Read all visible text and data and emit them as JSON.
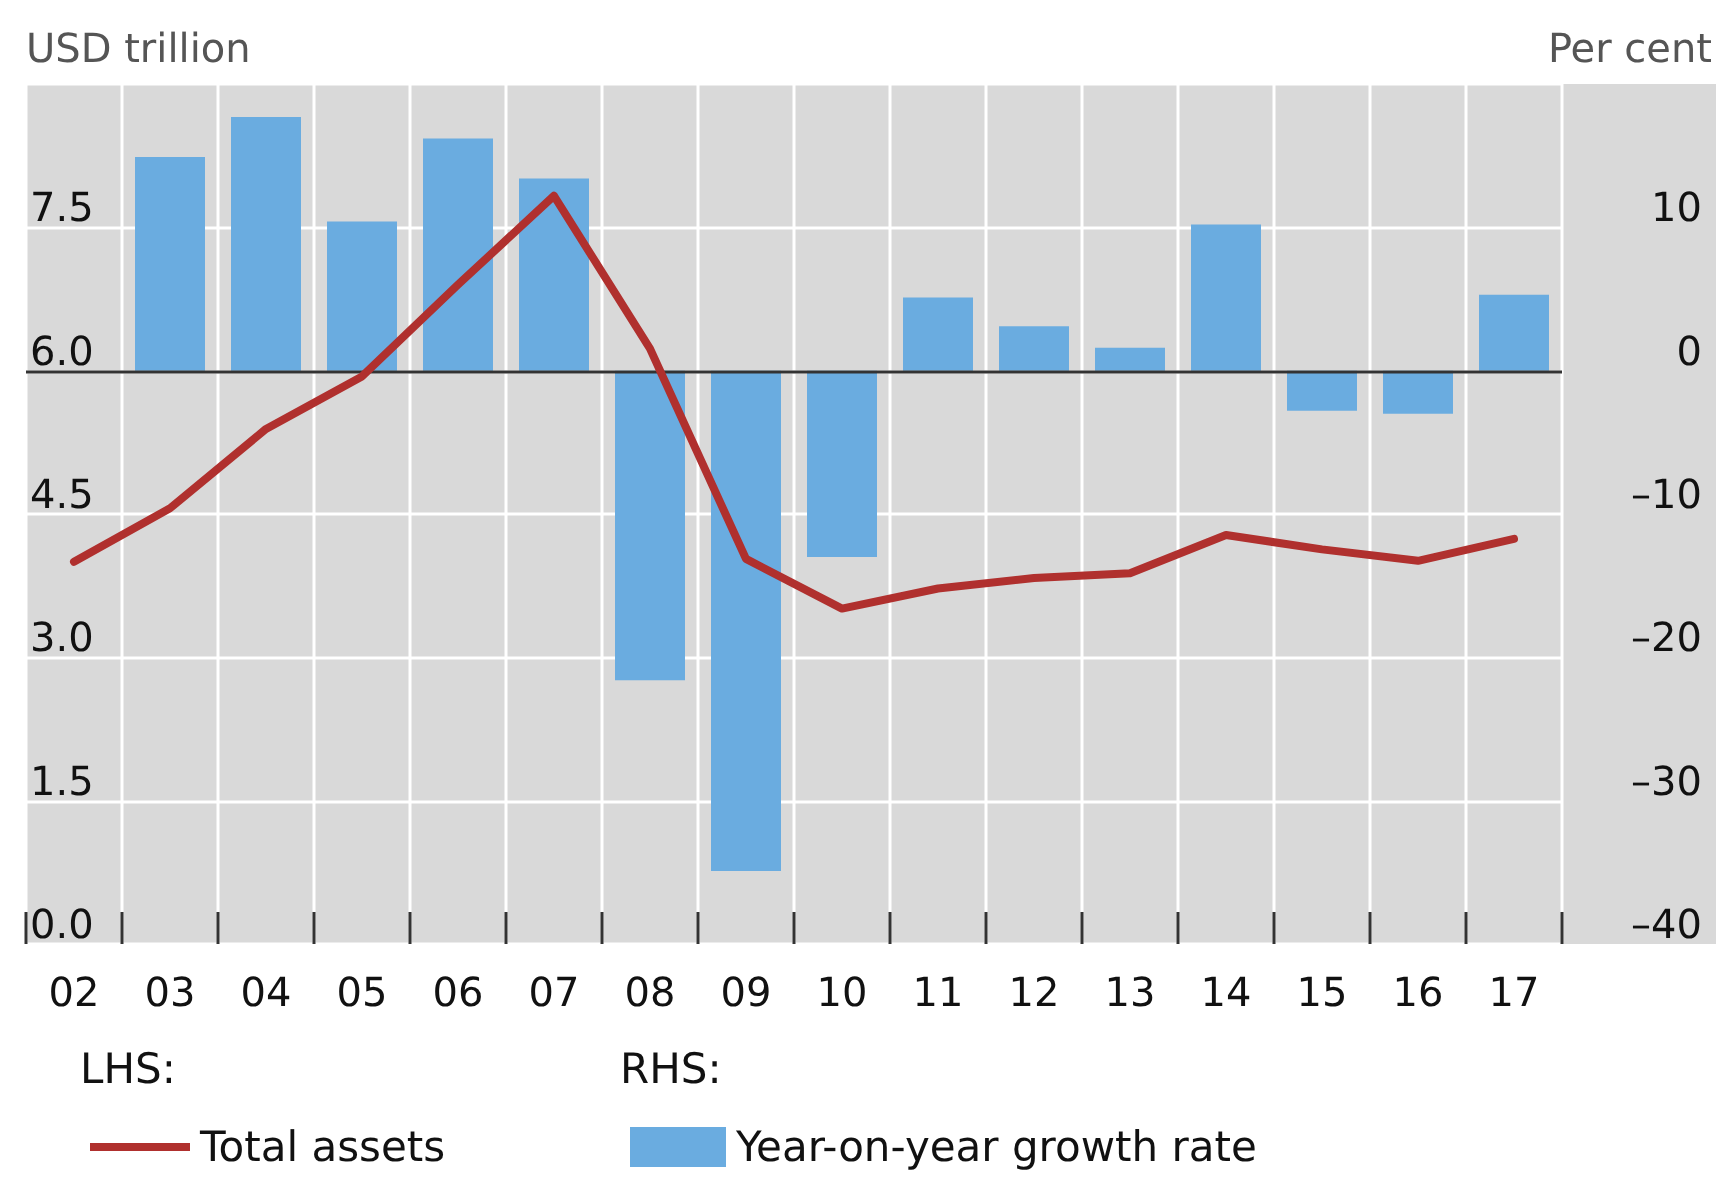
{
  "chart_data": {
    "type": "bar",
    "ylabel": "USD trillion",
    "y2label": "Per cent",
    "categories": [
      "02",
      "03",
      "04",
      "05",
      "06",
      "07",
      "08",
      "09",
      "10",
      "11",
      "12",
      "13",
      "14",
      "15",
      "16",
      "17"
    ],
    "series": [
      {
        "name": "Total assets",
        "type": "line",
        "color": "#b0302e",
        "values": [
          4.0,
          4.56,
          5.39,
          5.94,
          6.9,
          7.83,
          6.23,
          4.03,
          3.51,
          3.72,
          3.83,
          3.88,
          4.28,
          4.13,
          4.01,
          4.24
        ]
      },
      {
        "name": "Year-on-year growth rate",
        "axis": "y2",
        "color": "#6aace0",
        "values": [
          null,
          14.9,
          17.7,
          10.4,
          16.2,
          13.4,
          -21.6,
          -34.9,
          -13.0,
          5.1,
          3.1,
          1.6,
          10.2,
          -2.8,
          -3.0,
          5.3
        ]
      }
    ],
    "ylim": [
      0,
      9
    ],
    "yticks": [
      {
        "value": 0,
        "label": "0.0"
      },
      {
        "value": 1.5,
        "label": "1.5"
      },
      {
        "value": 3,
        "label": "3.0"
      },
      {
        "value": 4.5,
        "label": "4.5"
      },
      {
        "value": 6,
        "label": "6.0"
      },
      {
        "value": 7.5,
        "label": "7.5"
      }
    ],
    "y2lim": [
      -40,
      20
    ],
    "y2ticks": [
      {
        "value": -40,
        "label": "–40"
      },
      {
        "value": -30,
        "label": "–30"
      },
      {
        "value": -20,
        "label": "–20"
      },
      {
        "value": -10,
        "label": "–10"
      },
      {
        "value": 0,
        "label": "0"
      },
      {
        "value": 10,
        "label": "10"
      }
    ],
    "ref_lines": [
      {
        "axis": "y2",
        "value": 0,
        "color": "#333333"
      }
    ],
    "annotations": [
      "LHS:",
      "RHS:"
    ],
    "grid": true,
    "legend": "bottom",
    "marker": "none",
    "line_style": "solid"
  }
}
